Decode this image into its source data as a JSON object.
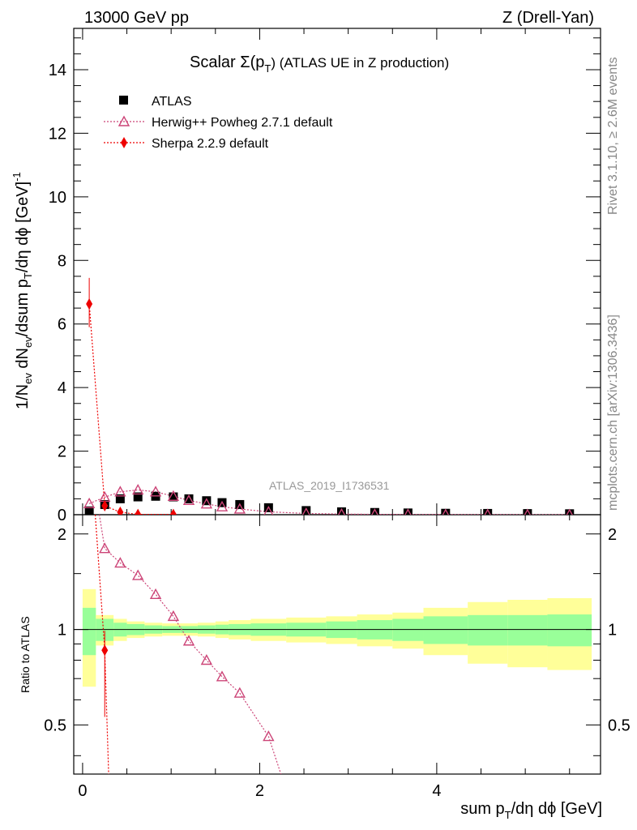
{
  "header": {
    "left": "13000 GeV pp",
    "right": "Z (Drell-Yan)"
  },
  "side_labels": {
    "rivet": "Rivet 3.1.10, ≥ 2.6M events",
    "mcplots": "mcplots.cern.ch [arXiv:1306.3436]"
  },
  "chart_data": {
    "type": "scatter",
    "title_main": "Scalar Σ(p",
    "title_sub": "T",
    "title_rest": ") (ATLAS UE in Z production)",
    "watermark": "ATLAS_2019_I1736531",
    "xlabel": "sum p_T/dη dϕ [GeV]",
    "ylabel": "1/N_ev dN_ev/dsum p_T/dη dϕ [GeV]^-1",
    "ratio_ylabel": "Ratio to ATLAS",
    "xlim": [
      -0.1,
      5.85
    ],
    "ylim": [
      0,
      15.3
    ],
    "ratio_ylim": [
      0.35,
      2.3
    ],
    "xticks": [
      0,
      2,
      4
    ],
    "yticks": [
      0,
      2,
      4,
      6,
      8,
      10,
      12,
      14
    ],
    "ratio_yticks": [
      0.5,
      1,
      2
    ],
    "legend": [
      {
        "name": "ATLAS",
        "marker": "square",
        "color": "#000000"
      },
      {
        "name": "Herwig++ Powheg 2.7.1 default",
        "marker": "open-triangle",
        "color": "#cc4477"
      },
      {
        "name": "Sherpa 2.2.9 default",
        "marker": "diamond",
        "color": "#ee0000"
      }
    ],
    "atlas": {
      "x": [
        0.075,
        0.25,
        0.425,
        0.625,
        0.825,
        1.025,
        1.2,
        1.4,
        1.575,
        1.775,
        2.1,
        2.525,
        2.925,
        3.3,
        3.675,
        4.1,
        4.575,
        5.025,
        5.5
      ],
      "y": [
        0.12,
        0.32,
        0.5,
        0.56,
        0.58,
        0.56,
        0.5,
        0.44,
        0.38,
        0.32,
        0.22,
        0.13,
        0.09,
        0.07,
        0.055,
        0.045,
        0.04,
        0.035,
        0.03
      ]
    },
    "herwig": {
      "x": [
        0.075,
        0.25,
        0.425,
        0.625,
        0.825,
        1.025,
        1.2,
        1.4,
        1.575,
        1.775,
        2.1,
        2.525,
        2.925,
        3.3,
        3.675,
        4.1,
        4.575,
        5.025,
        5.5
      ],
      "y": [
        0.35,
        0.55,
        0.72,
        0.78,
        0.72,
        0.58,
        0.45,
        0.34,
        0.25,
        0.18,
        0.09,
        0.04,
        0.02,
        0.012,
        0.008,
        0.005,
        0.003,
        0.002,
        0.001
      ],
      "ratio": [
        null,
        1.8,
        1.62,
        1.48,
        1.29,
        1.1,
        0.92,
        0.8,
        0.71,
        0.63,
        0.46,
        null,
        null,
        null,
        null,
        null,
        null,
        null,
        null
      ]
    },
    "sherpa": {
      "x": [
        0.075,
        0.25,
        0.425,
        0.625,
        1.025
      ],
      "y": [
        6.63,
        0.28,
        0.08,
        0.01,
        0.01
      ],
      "ratio": [
        null,
        0.86,
        null,
        null,
        null
      ]
    },
    "bands": {
      "edges": [
        0.0,
        0.15,
        0.35,
        0.5,
        0.7,
        0.9,
        1.1,
        1.3,
        1.5,
        1.65,
        1.9,
        2.3,
        2.75,
        3.1,
        3.5,
        3.85,
        4.35,
        4.8,
        5.25,
        5.75
      ],
      "green": [
        0.17,
        0.08,
        0.05,
        0.04,
        0.03,
        0.025,
        0.025,
        0.03,
        0.035,
        0.04,
        0.045,
        0.05,
        0.06,
        0.07,
        0.08,
        0.1,
        0.11,
        0.11,
        0.115
      ],
      "yellow": [
        0.34,
        0.11,
        0.08,
        0.06,
        0.05,
        0.045,
        0.045,
        0.05,
        0.06,
        0.07,
        0.08,
        0.09,
        0.1,
        0.115,
        0.13,
        0.17,
        0.22,
        0.24,
        0.255
      ]
    },
    "colors": {
      "green": "#99ff99",
      "yellow": "#ffff99",
      "herwig": "#cc4477",
      "sherpa": "#ee0000"
    }
  }
}
